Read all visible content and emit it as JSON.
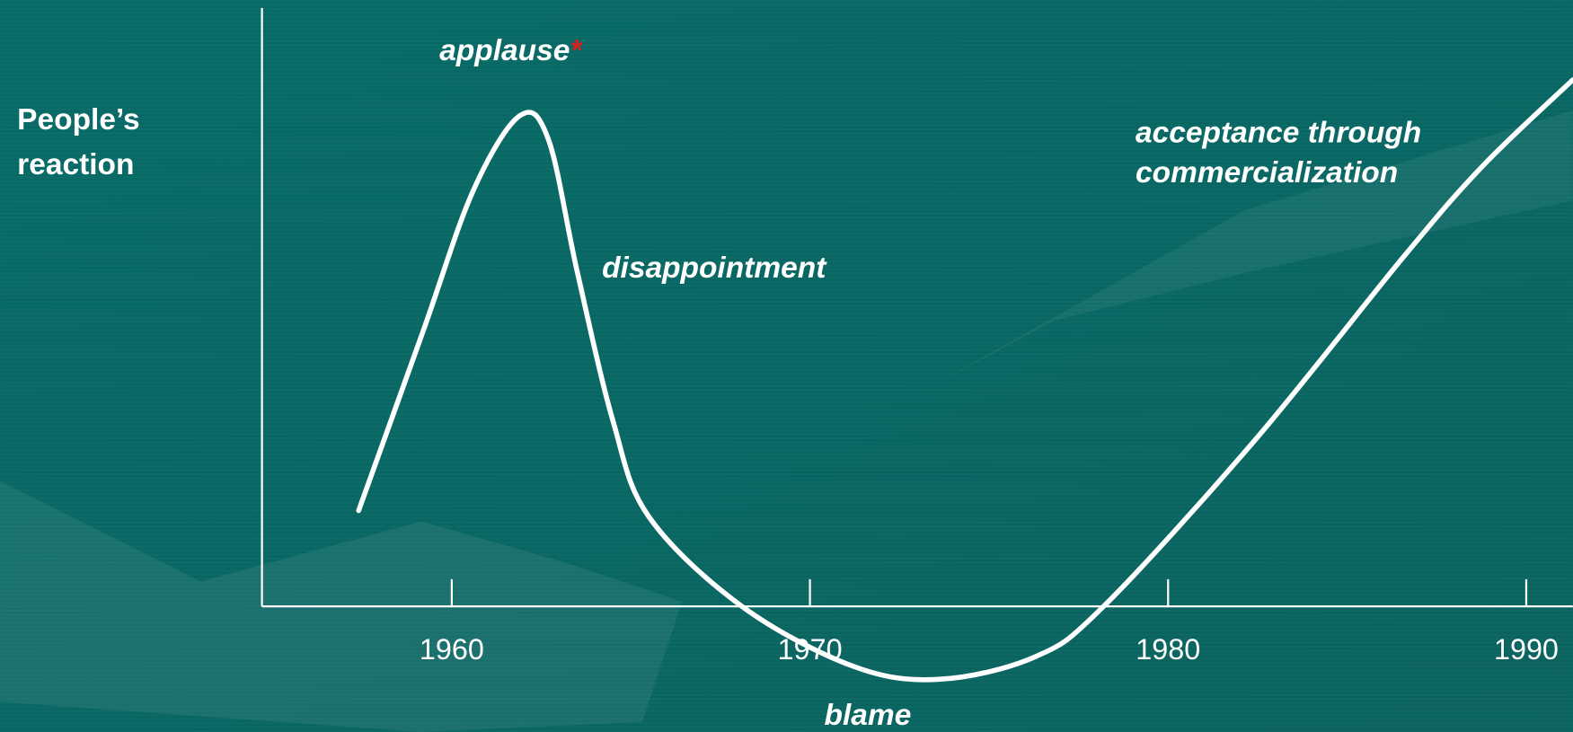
{
  "chart_data": {
    "type": "line",
    "ylabel": [
      "People’s",
      "reaction"
    ],
    "annotations": {
      "applause": "applause",
      "star": "*",
      "disappointment": "disappointment",
      "blame": "blame",
      "acceptance": [
        "acceptance through",
        "commercialization"
      ]
    },
    "xlim": [
      1954.7,
      1991.3
    ],
    "xticks": [
      1960,
      1970,
      1980,
      1990
    ],
    "ylim": [
      -2,
      10
    ],
    "series": [
      {
        "color": "#ffffff",
        "x": [
          1957.4,
          1959.2,
          1960.6,
          1961.9,
          1962.7,
          1963.5,
          1964.5,
          1965.5,
          1968.1,
          1971.2,
          1973.6,
          1976.3,
          1978.2,
          1982.4,
          1986.6,
          1988.8,
          1991.3
        ],
        "values": [
          1.6,
          4.6,
          6.95,
          8.2,
          7.8,
          5.6,
          3.1,
          1.5,
          0,
          -1.0,
          -1.22,
          -0.84,
          0,
          2.76,
          5.86,
          7.37,
          8.8
        ]
      }
    ],
    "star_color": "#d42020"
  }
}
